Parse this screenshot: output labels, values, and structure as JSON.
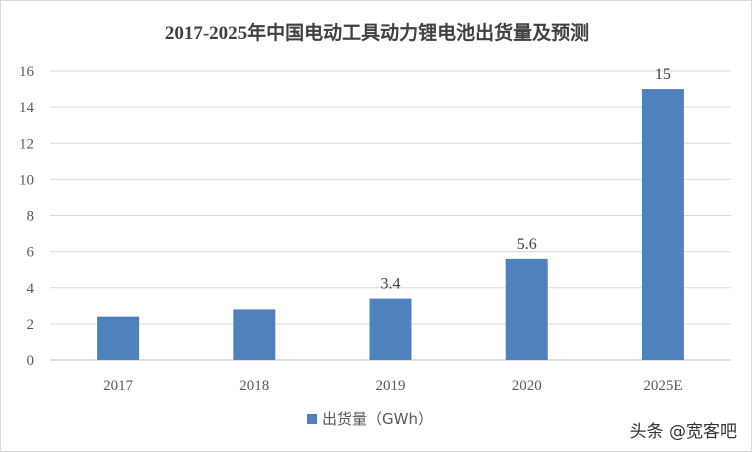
{
  "chart_data": {
    "type": "bar",
    "title": "2017-2025年中国电动工具动力锂电池出货量及预测",
    "categories": [
      "2017",
      "2018",
      "2019",
      "2020",
      "2025E"
    ],
    "series": [
      {
        "name": "出货量（GWh）",
        "values": [
          2.4,
          2.8,
          3.4,
          5.6,
          15
        ],
        "data_labels": [
          "",
          "",
          "3.4",
          "5.6",
          "15"
        ],
        "color": "#4f81bd"
      }
    ],
    "yticks": [
      "0",
      "2",
      "4",
      "6",
      "8",
      "10",
      "12",
      "14",
      "16"
    ],
    "ylim": [
      0,
      16
    ],
    "grid": true,
    "legend": "bottom"
  },
  "watermark": {
    "text": "头条 @宽客吧"
  }
}
